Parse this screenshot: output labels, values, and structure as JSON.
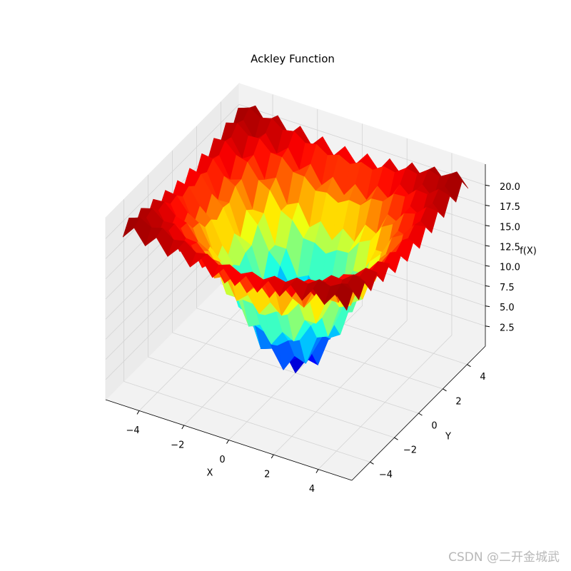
{
  "chart_data": {
    "type": "surface",
    "title": "Ackley Function",
    "xlabel": "X",
    "ylabel": "Y",
    "zlabel": "f(X)",
    "colormap": "jet",
    "grid": true,
    "xlim": [
      -5.5,
      5.5
    ],
    "ylim": [
      -5.5,
      5.5
    ],
    "zlim": [
      0,
      22.6
    ],
    "xticks": [
      {
        "value": -4,
        "label": "−4"
      },
      {
        "value": -2,
        "label": "−2"
      },
      0,
      2,
      4
    ],
    "yticks": [
      {
        "value": -4,
        "label": "−4"
      },
      {
        "value": -2,
        "label": "−2"
      },
      0,
      2,
      4
    ],
    "zticks": [
      2.5,
      {
        "value": 5,
        "label": "5.0"
      },
      7.5,
      {
        "value": 10,
        "label": "10.0"
      },
      12.5,
      {
        "value": 15,
        "label": "15.0"
      },
      17.5,
      {
        "value": 20,
        "label": "20.0"
      }
    ],
    "x": [
      -5,
      -4.5,
      -4,
      -3.5,
      -3,
      -2.5,
      -2,
      -1.5,
      -1,
      -0.5,
      0,
      0.5,
      1,
      1.5,
      2,
      2.5,
      3,
      3.5,
      4,
      4.5,
      5
    ],
    "y": [
      -5,
      -4.5,
      -4,
      -3.5,
      -3,
      -2.5,
      -2,
      -1.5,
      -1,
      -0.5,
      0,
      0.5,
      1,
      1.5,
      2,
      2.5,
      3,
      3.5,
      4,
      4.5,
      5
    ],
    "z": [
      [
        19.9,
        21.5,
        19.7,
        21.2,
        19.3,
        20.8,
        18.9,
        20.4,
        18.5,
        20.1,
        18.4,
        20.1,
        18.5,
        20.4,
        18.9,
        20.8,
        19.3,
        21.2,
        19.7,
        21.5,
        19.9
      ],
      [
        21.5,
        22.0,
        21.2,
        21.6,
        20.6,
        20.9,
        19.9,
        20.2,
        19.3,
        19.8,
        19.1,
        19.8,
        19.3,
        20.2,
        19.9,
        20.9,
        20.6,
        21.6,
        21.2,
        22.0,
        21.5
      ],
      [
        19.7,
        21.2,
        19.2,
        20.5,
        18.4,
        19.6,
        17.3,
        18.5,
        16.3,
        17.8,
        16.0,
        17.8,
        16.3,
        18.5,
        17.3,
        19.6,
        18.4,
        20.5,
        19.2,
        21.2,
        19.7
      ],
      [
        21.2,
        21.6,
        20.5,
        20.6,
        19.3,
        19.2,
        17.8,
        17.7,
        16.4,
        16.6,
        15.8,
        16.6,
        16.4,
        17.7,
        17.8,
        19.2,
        19.3,
        20.6,
        20.5,
        21.6,
        21.2
      ],
      [
        19.3,
        20.6,
        18.4,
        19.3,
        16.7,
        17.4,
        14.5,
        15.2,
        12.6,
        13.8,
        11.9,
        13.8,
        12.6,
        15.2,
        14.5,
        17.4,
        16.7,
        19.3,
        18.4,
        20.6,
        19.3
      ],
      [
        20.8,
        20.9,
        19.6,
        19.2,
        17.4,
        16.6,
        14.5,
        13.8,
        12.0,
        11.9,
        11.0,
        11.9,
        12.0,
        13.8,
        14.5,
        16.6,
        17.4,
        19.2,
        19.6,
        20.9,
        20.8
      ],
      [
        18.9,
        19.9,
        17.3,
        17.8,
        14.5,
        14.5,
        11.0,
        11.0,
        7.9,
        8.6,
        6.6,
        8.6,
        7.9,
        11.0,
        11.0,
        14.5,
        14.5,
        17.8,
        17.3,
        19.9,
        18.9
      ],
      [
        20.4,
        20.2,
        18.5,
        17.7,
        15.2,
        13.8,
        11.0,
        9.6,
        7.3,
        6.8,
        5.7,
        6.8,
        7.3,
        9.6,
        11.0,
        13.8,
        15.2,
        17.7,
        18.5,
        20.2,
        20.4
      ],
      [
        18.5,
        19.3,
        16.3,
        16.4,
        12.6,
        12.0,
        7.9,
        7.3,
        3.6,
        4.1,
        1.9,
        4.1,
        3.6,
        7.3,
        7.9,
        12.0,
        12.6,
        16.4,
        16.3,
        19.3,
        18.5
      ],
      [
        20.1,
        19.8,
        17.8,
        16.6,
        13.8,
        11.9,
        8.6,
        6.8,
        4.1,
        3.3,
        2.2,
        3.3,
        4.1,
        6.8,
        8.6,
        11.9,
        13.8,
        16.6,
        17.8,
        19.8,
        20.1
      ],
      [
        18.4,
        19.1,
        16.0,
        15.8,
        11.9,
        11.0,
        6.6,
        5.7,
        1.9,
        2.2,
        0.0,
        2.2,
        1.9,
        5.7,
        6.6,
        11.0,
        11.9,
        15.8,
        16.0,
        19.1,
        18.4
      ],
      [
        20.1,
        19.8,
        17.8,
        16.6,
        13.8,
        11.9,
        8.6,
        6.8,
        4.1,
        3.3,
        2.2,
        3.3,
        4.1,
        6.8,
        8.6,
        11.9,
        13.8,
        16.6,
        17.8,
        19.8,
        20.1
      ],
      [
        18.5,
        19.3,
        16.3,
        16.4,
        12.6,
        12.0,
        7.9,
        7.3,
        3.6,
        4.1,
        1.9,
        4.1,
        3.6,
        7.3,
        7.9,
        12.0,
        12.6,
        16.4,
        16.3,
        19.3,
        18.5
      ],
      [
        20.4,
        20.2,
        18.5,
        17.7,
        15.2,
        13.8,
        11.0,
        9.6,
        7.3,
        6.8,
        5.7,
        6.8,
        7.3,
        9.6,
        11.0,
        13.8,
        15.2,
        17.7,
        18.5,
        20.2,
        20.4
      ],
      [
        18.9,
        19.9,
        17.3,
        17.8,
        14.5,
        14.5,
        11.0,
        11.0,
        7.9,
        8.6,
        6.6,
        8.6,
        7.9,
        11.0,
        11.0,
        14.5,
        14.5,
        17.8,
        17.3,
        19.9,
        18.9
      ],
      [
        20.8,
        20.9,
        19.6,
        19.2,
        17.4,
        16.6,
        14.5,
        13.8,
        12.0,
        11.9,
        11.0,
        11.9,
        12.0,
        13.8,
        14.5,
        16.6,
        17.4,
        19.2,
        19.6,
        20.9,
        20.8
      ],
      [
        19.3,
        20.6,
        18.4,
        19.3,
        16.7,
        17.4,
        14.5,
        15.2,
        12.6,
        13.8,
        11.9,
        13.8,
        12.6,
        15.2,
        14.5,
        17.4,
        16.7,
        19.3,
        18.4,
        20.6,
        19.3
      ],
      [
        21.2,
        21.6,
        20.5,
        20.6,
        19.3,
        19.2,
        17.8,
        17.7,
        16.4,
        16.6,
        15.8,
        16.6,
        16.4,
        17.7,
        17.8,
        19.2,
        19.3,
        20.6,
        20.5,
        21.6,
        21.2
      ],
      [
        19.7,
        21.2,
        19.2,
        20.5,
        18.4,
        19.6,
        17.3,
        18.5,
        16.3,
        17.8,
        16.0,
        17.8,
        16.3,
        18.5,
        17.3,
        19.6,
        18.4,
        20.5,
        19.2,
        21.2,
        19.7
      ],
      [
        21.5,
        22.0,
        21.2,
        21.6,
        20.6,
        20.9,
        19.9,
        20.2,
        19.3,
        19.8,
        19.1,
        19.8,
        19.3,
        20.2,
        19.9,
        20.9,
        20.6,
        21.6,
        21.2,
        22.0,
        21.5
      ],
      [
        19.9,
        21.5,
        19.7,
        21.2,
        19.3,
        20.8,
        18.9,
        20.4,
        18.5,
        20.1,
        18.4,
        20.1,
        18.5,
        20.4,
        18.9,
        20.8,
        19.3,
        21.2,
        19.7,
        21.5,
        19.9
      ]
    ]
  },
  "watermark": "CSDN @二开金城武"
}
